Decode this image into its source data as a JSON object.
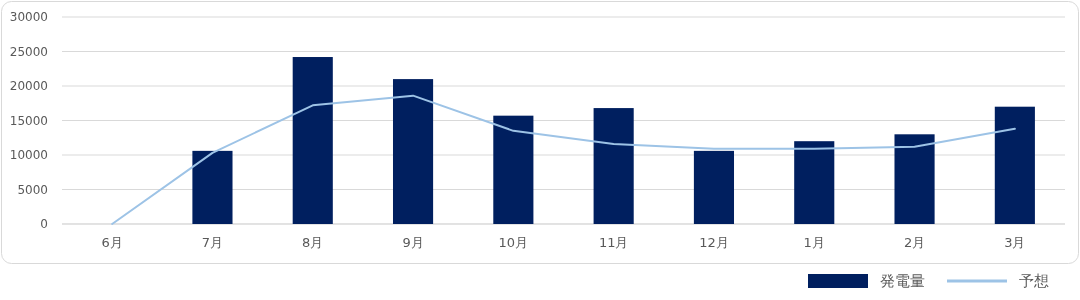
{
  "chart_data": {
    "type": "bar",
    "categories": [
      "6月",
      "7月",
      "8月",
      "9月",
      "10月",
      "11月",
      "12月",
      "1月",
      "2月",
      "3月"
    ],
    "series": [
      {
        "name": "発電量",
        "color": "#001f5f",
        "values": [
          null,
          10600,
          24200,
          21000,
          15700,
          16800,
          10600,
          12000,
          13000,
          17000
        ]
      },
      {
        "name": "予想",
        "type": "line",
        "color": "#9dc3e6",
        "values": [
          0,
          10300,
          17200,
          18600,
          13500,
          11600,
          10900,
          10900,
          11200,
          13800
        ]
      }
    ],
    "ylim": [
      0,
      30000
    ],
    "yticks": [
      0,
      5000,
      10000,
      15000,
      20000,
      25000,
      30000
    ],
    "grid": "y",
    "legend": "bottom right"
  }
}
